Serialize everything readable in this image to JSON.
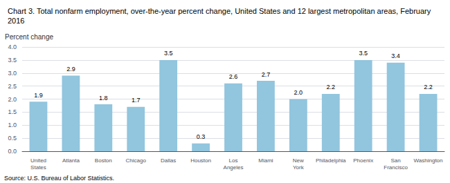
{
  "chart_data": {
    "type": "bar",
    "title": "Chart 3. Total nonfarm employment, over-the-year percent change, United States and 12 largest metropolitan areas, February 2016",
    "ylabel": "Percent change",
    "source": "Source: U.S. Bureau of Labor Statistics.",
    "categories": [
      "United\nStates",
      "Atlanta",
      "Boston",
      "Chicago",
      "Dallas",
      "Houston",
      "Los\nAngeles",
      "Miami",
      "New\nYork",
      "Philadelphia",
      "Phoenix",
      "San\nFrancisco",
      "Washington"
    ],
    "values": [
      1.9,
      2.9,
      1.8,
      1.7,
      3.5,
      0.3,
      2.6,
      2.7,
      2.0,
      2.2,
      3.5,
      3.4,
      2.2
    ],
    "value_labels": [
      "1.9",
      "2.9",
      "1.8",
      "1.7",
      "3.5",
      "0.3",
      "2.6",
      "2.7",
      "2.0",
      "2.2",
      "3.5",
      "3.4",
      "2.2"
    ],
    "color": "#92C5DE",
    "data_labels": true,
    "ylim": [
      0,
      4.0
    ],
    "yticks": [
      {
        "value": 0,
        "label": "0.0"
      },
      0.5,
      {
        "value": 1,
        "label": "1.0"
      },
      1.5,
      {
        "value": 2,
        "label": "2.0"
      },
      2.5,
      {
        "value": 3,
        "label": "3.0"
      },
      3.5,
      {
        "value": 4,
        "label": "4.0"
      }
    ],
    "grid": true
  }
}
